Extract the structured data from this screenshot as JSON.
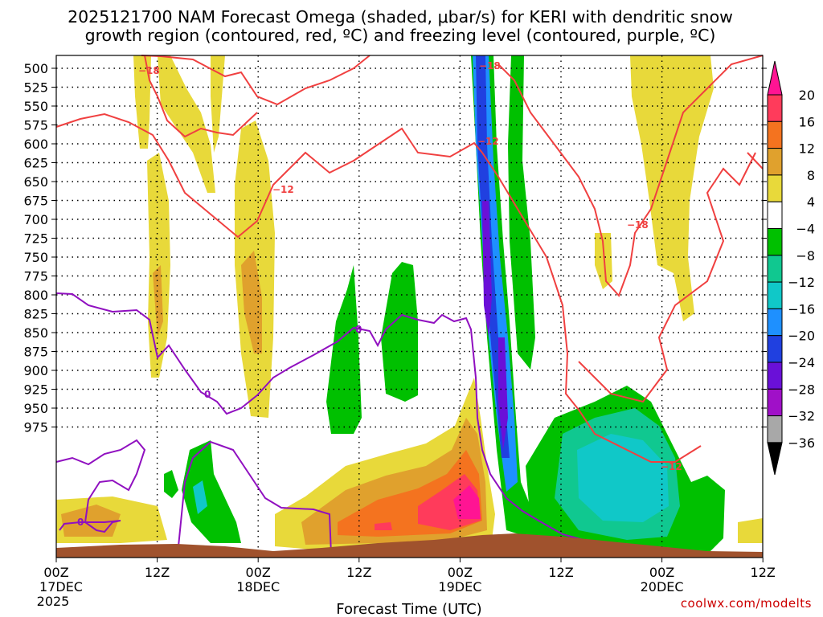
{
  "chart_data": {
    "type": "heatmap",
    "title_line1": "2025121700 NAM Forecast Omega (shaded, μbar/s) for KERI with dendritic snow",
    "title_line2": "growth region (contoured, red, ºC) and freezing level (contoured, purple, ºC)",
    "xlabel": "Forecast Time (UTC)",
    "credit": "coolwx.com/modelts",
    "pressure_ticks": [
      500,
      525,
      550,
      575,
      600,
      625,
      650,
      675,
      700,
      725,
      750,
      775,
      800,
      825,
      850,
      875,
      900,
      925,
      950,
      975
    ],
    "time_ticks": [
      {
        "l1": "00Z",
        "l2": "17DEC",
        "l3": "2025"
      },
      {
        "l1": "12Z",
        "l2": "",
        "l3": ""
      },
      {
        "l1": "00Z",
        "l2": "18DEC",
        "l3": ""
      },
      {
        "l1": "12Z",
        "l2": "",
        "l3": ""
      },
      {
        "l1": "00Z",
        "l2": "19DEC",
        "l3": ""
      },
      {
        "l1": "12Z",
        "l2": "",
        "l3": ""
      },
      {
        "l1": "00Z",
        "l2": "20DEC",
        "l3": ""
      },
      {
        "l1": "12Z",
        "l2": "",
        "l3": ""
      }
    ],
    "colorbar": {
      "labels": [
        "20",
        "16",
        "12",
        "8",
        "4",
        "−4",
        "−8",
        "−12",
        "−16",
        "−20",
        "−24",
        "−28",
        "−32",
        "−36"
      ],
      "colors": [
        "#ff3b5b",
        "#f4731f",
        "#e0a12d",
        "#e8d93a",
        "#ffffff",
        "#00c000",
        "#10c890",
        "#10c8c8",
        "#1e90ff",
        "#2040e0",
        "#6a10d8",
        "#a010c8",
        "#a8a8a8"
      ],
      "top_arrow_color": "#ff1493",
      "bottom_arrow_color": "#000000"
    },
    "contour_labels": {
      "red": [
        "−18",
        "−12",
        "−18",
        "−12",
        "−18",
        "−12"
      ],
      "purple": [
        "0",
        "0",
        "0"
      ]
    },
    "colors": {
      "terrain": "#a0522d",
      "red_contour": "#f04040",
      "purple_contour": "#9010c0"
    }
  }
}
